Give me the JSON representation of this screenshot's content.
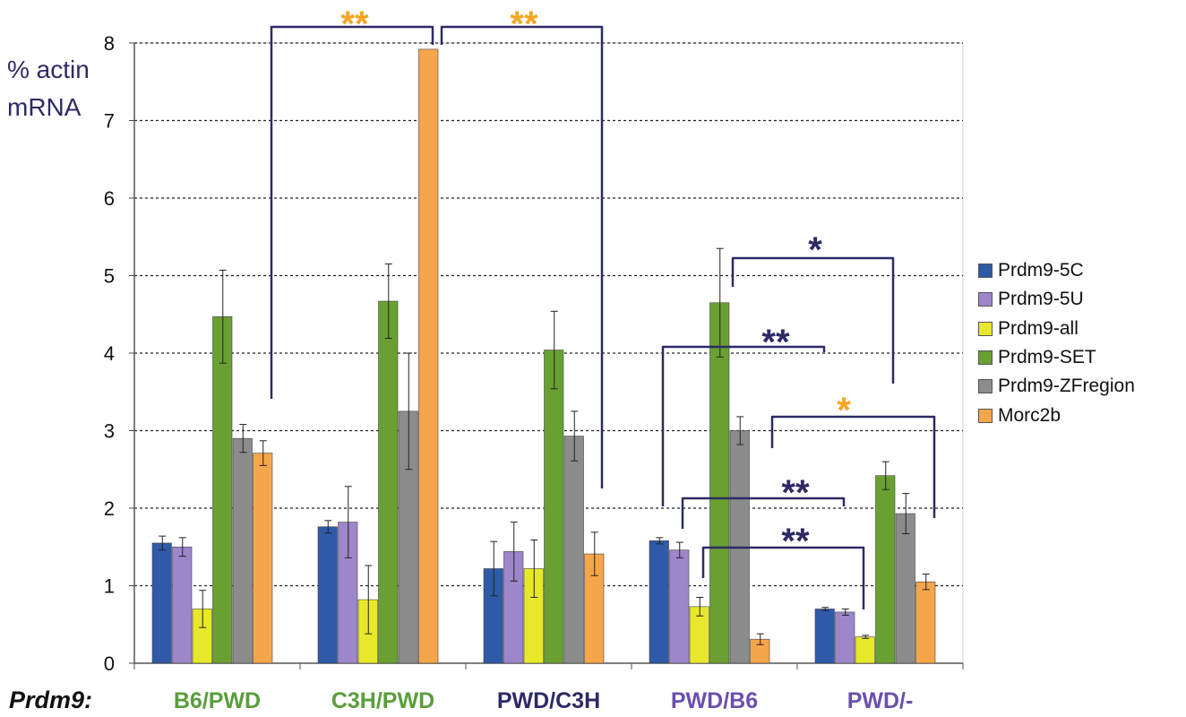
{
  "chart_data": {
    "type": "bar",
    "title": "",
    "ylabel_lines": [
      "% actin",
      "mRNA"
    ],
    "xlabel": "Prdm9:",
    "ylim": [
      0,
      8
    ],
    "yticks": [
      "0",
      "1",
      "2",
      "3",
      "4",
      "5",
      "6",
      "7",
      "8"
    ],
    "grid": "horizontal dotted",
    "legend_position": "right",
    "categories": [
      "B6/PWD",
      "C3H/PWD",
      "PWD/C3H",
      "PWD/B6",
      "PWD/-"
    ],
    "category_colors": [
      "#5a9e3c",
      "#5a9e3c",
      "#2e2a66",
      "#6a4fb0",
      "#6a4fb0"
    ],
    "series": [
      {
        "name": "Prdm9-5C",
        "color": "#2f5aa8",
        "values": [
          1.55,
          1.76,
          1.22,
          1.58,
          0.7
        ],
        "errors": [
          0.09,
          0.08,
          0.35,
          0.04,
          0.02
        ]
      },
      {
        "name": "Prdm9-5U",
        "color": "#9d86c9",
        "values": [
          1.5,
          1.82,
          1.44,
          1.46,
          0.66
        ],
        "errors": [
          0.12,
          0.46,
          0.38,
          0.1,
          0.04
        ]
      },
      {
        "name": "Prdm9-all",
        "color": "#e8e82a",
        "values": [
          0.7,
          0.82,
          1.22,
          0.73,
          0.34
        ],
        "errors": [
          0.24,
          0.44,
          0.37,
          0.12,
          0.02
        ]
      },
      {
        "name": "Prdm9-SET",
        "color": "#6aa032",
        "values": [
          4.47,
          4.67,
          4.04,
          4.65,
          2.42
        ],
        "errors": [
          0.6,
          0.48,
          0.5,
          0.7,
          0.18
        ]
      },
      {
        "name": "Prdm9-ZFregion",
        "color": "#8c8c8c",
        "values": [
          2.9,
          3.25,
          2.93,
          3.0,
          1.93
        ],
        "errors": [
          0.18,
          0.75,
          0.32,
          0.18,
          0.26
        ]
      },
      {
        "name": "Morc2b",
        "color": "#f5a54a",
        "values": [
          2.71,
          7.92,
          1.41,
          0.31,
          1.05
        ],
        "errors": [
          0.16,
          0,
          0.28,
          0.07,
          0.1
        ]
      }
    ],
    "annotations": [
      {
        "text": "**",
        "color": "#f5a623"
      },
      {
        "text": "**",
        "color": "#f5a623"
      },
      {
        "text": "*",
        "color": "#2e2a66"
      },
      {
        "text": "**",
        "color": "#2e2a66"
      },
      {
        "text": "*",
        "color": "#f5a623"
      },
      {
        "text": "**",
        "color": "#2e2a66"
      },
      {
        "text": "**",
        "color": "#2e2a66"
      }
    ]
  }
}
